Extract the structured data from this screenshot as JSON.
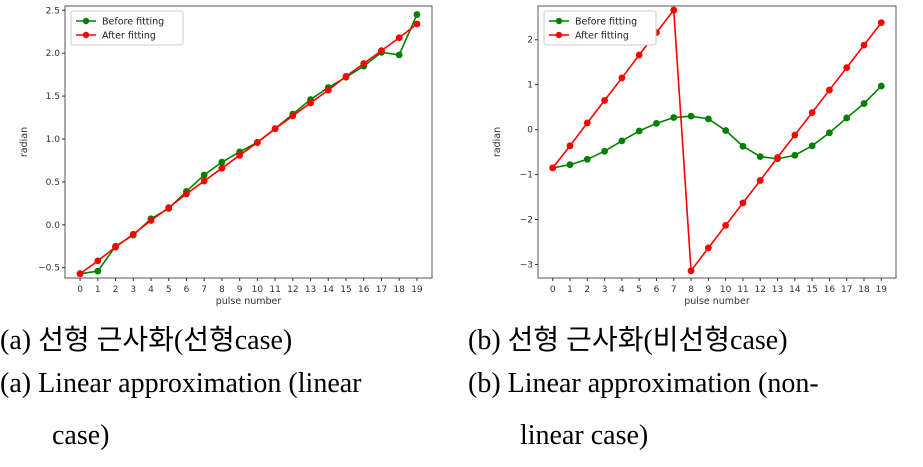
{
  "chart_data": [
    {
      "type": "line",
      "xlabel": "pulse number",
      "ylabel": "radian",
      "ylim": [
        -0.62,
        2.55
      ],
      "x": [
        0,
        1,
        2,
        3,
        4,
        5,
        6,
        7,
        8,
        9,
        10,
        11,
        12,
        13,
        14,
        15,
        16,
        17,
        18,
        19
      ],
      "yticks": [
        -0.5,
        0.0,
        0.5,
        1.0,
        1.5,
        2.0,
        2.5
      ],
      "ytick_labels": [
        "−0.5",
        "0.0",
        "0.5",
        "1.0",
        "1.5",
        "2.0",
        "2.5"
      ],
      "legend_position": "top-left",
      "series": [
        {
          "name": "Before fitting",
          "color": "#008000",
          "values": [
            -0.57,
            -0.54,
            -0.25,
            -0.12,
            0.07,
            0.19,
            0.39,
            0.58,
            0.73,
            0.85,
            0.96,
            1.12,
            1.29,
            1.46,
            1.6,
            1.72,
            1.85,
            2.01,
            1.98,
            2.45
          ]
        },
        {
          "name": "After fitting",
          "color": "#ff0000",
          "values": [
            -0.57,
            -0.42,
            -0.26,
            -0.11,
            0.05,
            0.2,
            0.36,
            0.51,
            0.66,
            0.81,
            0.96,
            1.12,
            1.27,
            1.42,
            1.57,
            1.73,
            1.88,
            2.03,
            2.18,
            2.34
          ]
        }
      ]
    },
    {
      "type": "line",
      "xlabel": "pulse number",
      "ylabel": "radian",
      "ylim": [
        -3.3,
        2.75
      ],
      "x": [
        0,
        1,
        2,
        3,
        4,
        5,
        6,
        7,
        8,
        9,
        10,
        11,
        12,
        13,
        14,
        15,
        16,
        17,
        18,
        19
      ],
      "yticks": [
        -3,
        -2,
        -1,
        0,
        1,
        2
      ],
      "ytick_labels": [
        "−3",
        "−2",
        "−1",
        "0",
        "1",
        "2"
      ],
      "legend_position": "top-left",
      "series": [
        {
          "name": "Before fitting",
          "color": "#008000",
          "values": [
            -0.85,
            -0.78,
            -0.66,
            -0.48,
            -0.25,
            -0.03,
            0.14,
            0.27,
            0.3,
            0.24,
            -0.02,
            -0.37,
            -0.6,
            -0.65,
            -0.57,
            -0.36,
            -0.07,
            0.26,
            0.58,
            0.97
          ]
        },
        {
          "name": "After fitting",
          "color": "#ff0000",
          "values": [
            -0.85,
            -0.36,
            0.15,
            0.65,
            1.15,
            1.66,
            2.16,
            2.66,
            -3.14,
            -2.63,
            -2.13,
            -1.63,
            -1.13,
            -0.62,
            -0.12,
            0.38,
            0.88,
            1.38,
            1.88,
            2.38
          ]
        }
      ]
    }
  ],
  "captions": {
    "left_ko": "(a) 선형  근사화(선형case)",
    "left_en_1": "(a)  Linear  approximation  (linear",
    "left_en_2": "case)",
    "right_ko": "(b) 선형  근사화(비선형case)",
    "right_en_1": "(b)  Linear  approximation  (non-",
    "right_en_2": "linear  case)"
  }
}
